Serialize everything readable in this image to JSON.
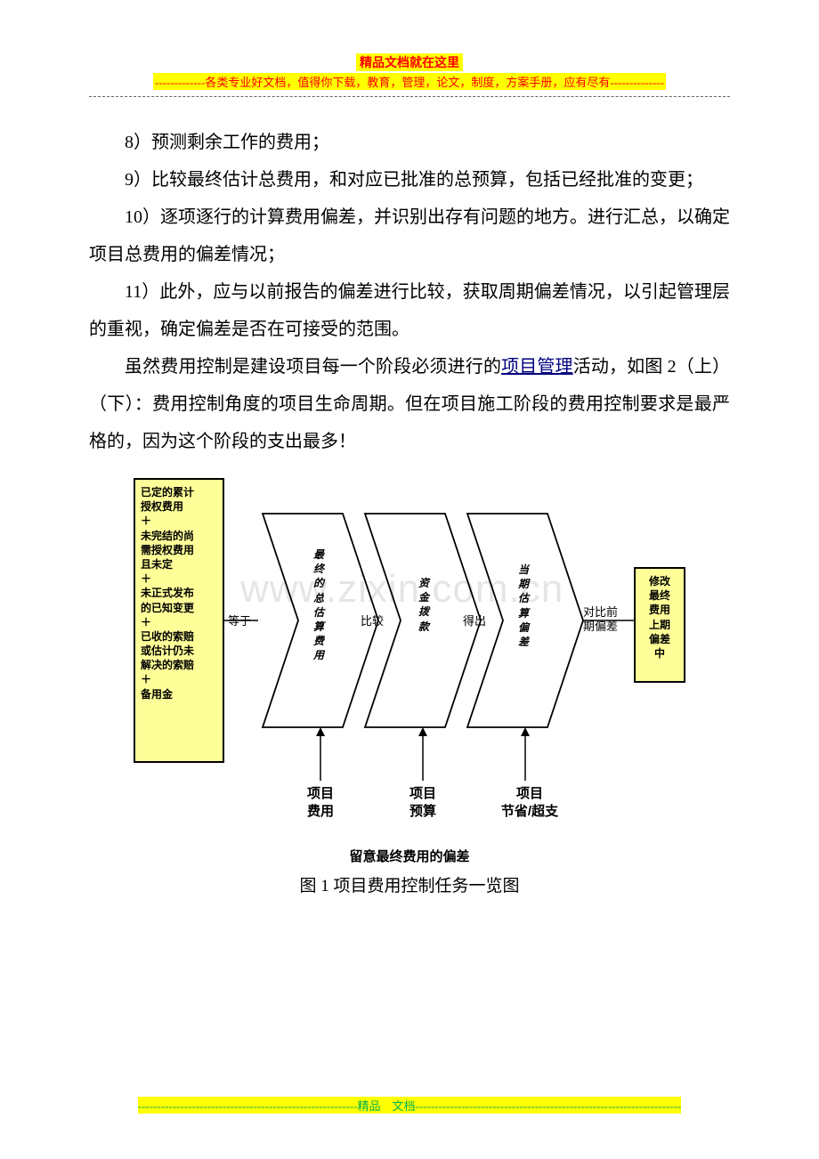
{
  "header": {
    "line1": "精品文档就在这里",
    "line2": "-------------各类专业好文档，值得你下载，教育，管理，论文，制度，方案手册，应有尽有--------------"
  },
  "paragraphs": {
    "p8": "8）预测剩余工作的费用；",
    "p9": "9）比较最终估计总费用，和对应已批准的总预算，包括已经批准的变更；",
    "p10": "10）逐项逐行的计算费用偏差，并识别出存有问题的地方。进行汇总，以确定项目总费用的偏差情况；",
    "p11": "11）此外，应与以前报告的偏差进行比较，获取周期偏差情况，以引起管理层的重视，确定偏差是否在可接受的范围。",
    "p12a": "虽然费用控制是建设项目每一个阶段必须进行的",
    "p12_link": "项目管理",
    "p12b": "活动，如图 2（上）（下）：费用控制角度的项目生命周期。但在项目施工阶段的费用控制要求是最严格的，因为这个阶段的支出最多！"
  },
  "diagram": {
    "type": "flowchart",
    "background_color": "#ffffff",
    "border_color": "#000000",
    "box_fill": "#ffff99",
    "left_box_lines": [
      "已定的累计",
      "授权费用",
      "＋",
      "未完结的尚",
      "需授权费用",
      "且未定",
      "＋",
      "未正式发布",
      "的已知变更",
      "＋",
      "已收的索赔",
      "或估计仍未",
      "解决的索赔",
      "＋",
      "备用金"
    ],
    "right_box_lines": [
      "修改",
      "最终",
      "费用",
      "上期",
      "偏差",
      "中"
    ],
    "chevrons": [
      {
        "inner_label": "最\n终\n的\n总\n估\n算\n费\n用",
        "left_text": "等于",
        "bottom_label": "项目\n费用"
      },
      {
        "inner_label": "资\n金\n拨\n款",
        "left_text": "比较",
        "bottom_label": "项目\n预算"
      },
      {
        "inner_label": "当\n期\n估\n算\n偏\n差",
        "left_text": "得出",
        "bottom_label": "项目\n节省/超支"
      }
    ],
    "post_text": "对比前\n期偏差",
    "bottom_title": "留意最终费用的偏差",
    "caption": "图 1 项目费用控制任务一览图",
    "watermark": "www.zixin.com.cn",
    "font_inner": 12,
    "font_conn": 13,
    "font_bottom": 15
  },
  "footer": {
    "text": "---------------------------------------------------------精品　文档---------------------------------------------------------------------"
  }
}
